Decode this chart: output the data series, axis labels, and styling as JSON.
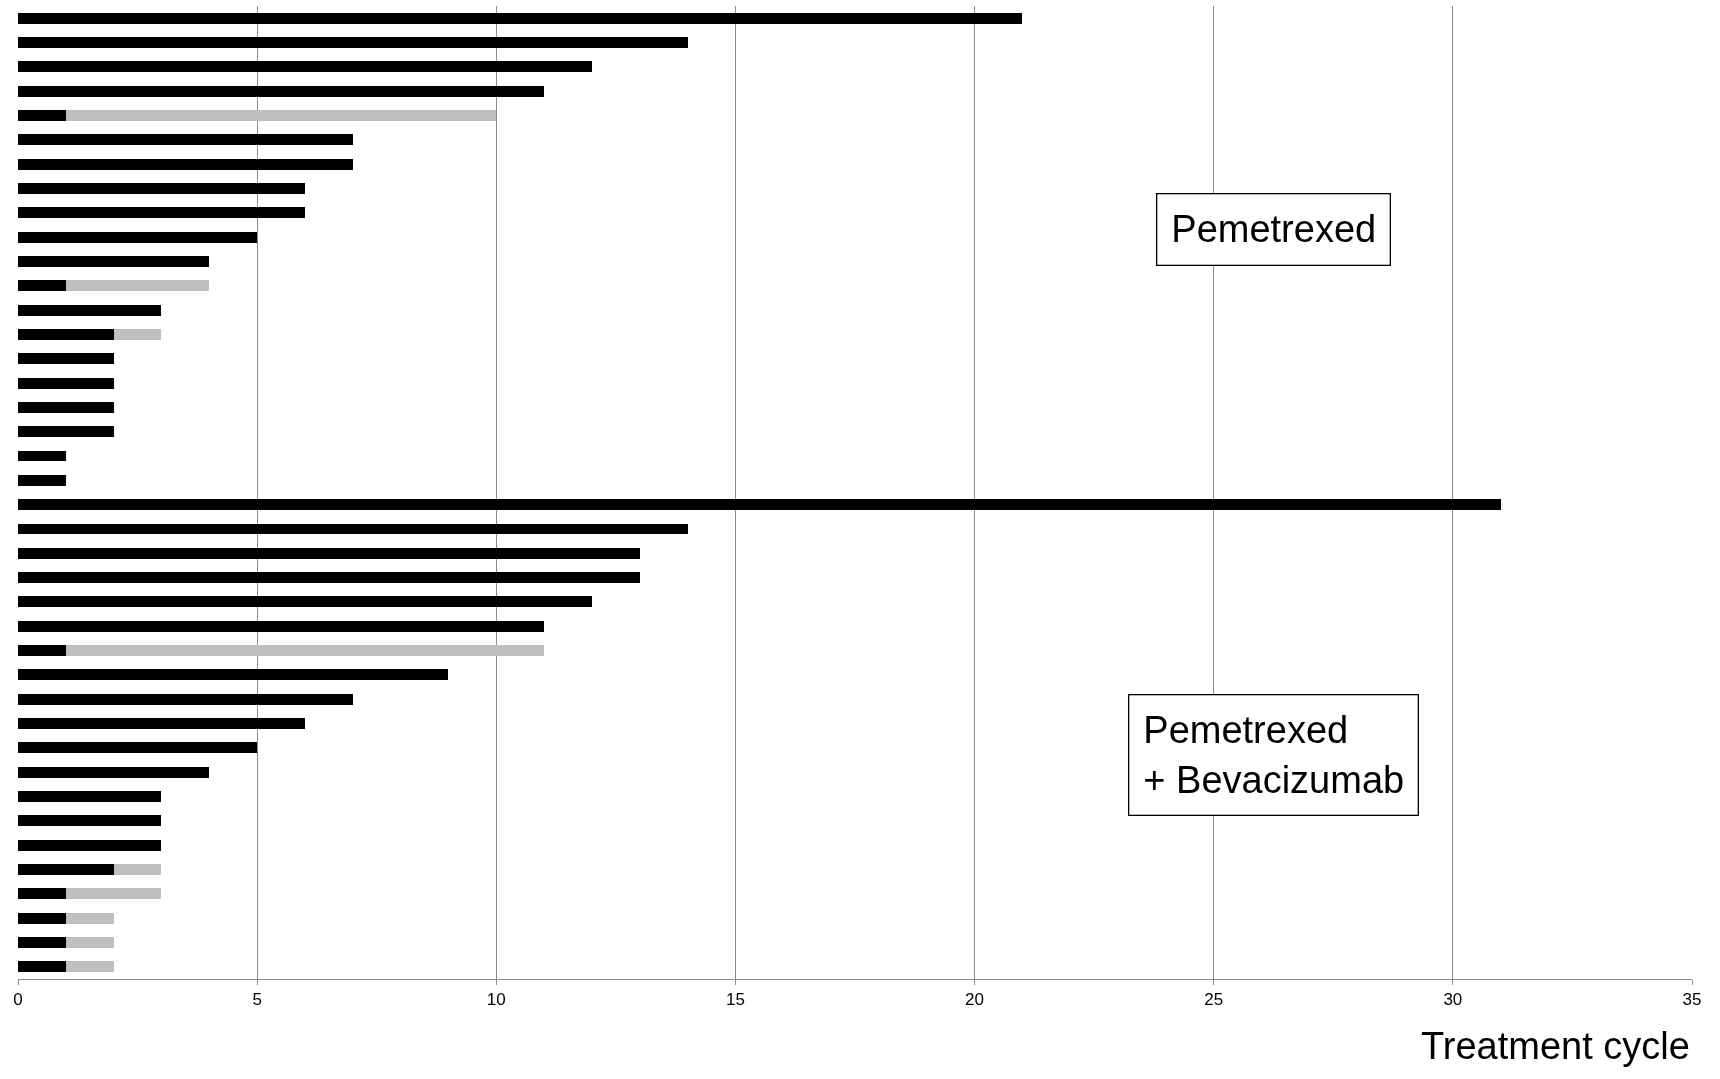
{
  "chart_data": {
    "type": "bar",
    "orientation": "horizontal",
    "stacked": true,
    "xlabel": "Treatment cycle",
    "categories": [
      null,
      null,
      null,
      null,
      null,
      null,
      null,
      null,
      null,
      null,
      null,
      null,
      null,
      null,
      null,
      null,
      null,
      null,
      null,
      null,
      null,
      null,
      null,
      null,
      null,
      null,
      null,
      null,
      null,
      null,
      null,
      null,
      null,
      null,
      null,
      null,
      null,
      null,
      null,
      null
    ],
    "series": [
      {
        "color": "#000000",
        "values": [
          21,
          14,
          12,
          11,
          1,
          7,
          7,
          6,
          6,
          5,
          4,
          1,
          3,
          2,
          2,
          2,
          2,
          2,
          1,
          1,
          31,
          14,
          13,
          13,
          12,
          11,
          1,
          9,
          7,
          6,
          5,
          4,
          3,
          3,
          3,
          2,
          1,
          1,
          1,
          1
        ]
      },
      {
        "color": "#bfbfbf",
        "values": [
          null,
          null,
          null,
          null,
          9,
          null,
          null,
          null,
          null,
          null,
          null,
          3,
          null,
          1,
          null,
          null,
          null,
          null,
          null,
          null,
          null,
          null,
          null,
          null,
          null,
          null,
          10,
          null,
          null,
          null,
          null,
          null,
          null,
          null,
          null,
          1,
          2,
          1,
          1,
          1
        ]
      }
    ],
    "xlim": [
      0,
      35
    ],
    "xticks": [
      0,
      5,
      10,
      15,
      20,
      25,
      30,
      35
    ],
    "grid": "x",
    "tick_labels": "x",
    "annotations": [
      "Pemetrexed",
      "Pemetrexed\n+ Bevacizumab"
    ]
  }
}
